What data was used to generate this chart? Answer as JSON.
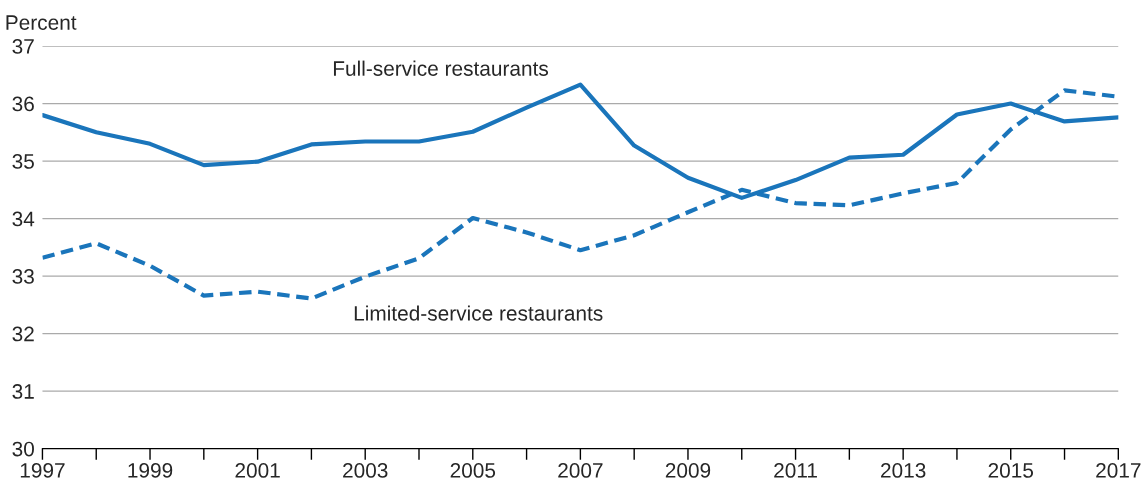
{
  "chart_data": {
    "type": "line",
    "ylabel": "Percent",
    "x": [
      1997,
      1998,
      1999,
      2000,
      2001,
      2002,
      2003,
      2004,
      2005,
      2006,
      2007,
      2008,
      2009,
      2010,
      2011,
      2012,
      2013,
      2014,
      2015,
      2016,
      2017
    ],
    "series": [
      {
        "name": "Full-service restaurants",
        "color": "#1a75bb",
        "line_style": "solid",
        "values": [
          35.8,
          35.5,
          35.3,
          34.93,
          34.99,
          35.29,
          35.34,
          35.34,
          35.51,
          35.93,
          36.33,
          35.27,
          34.71,
          34.36,
          34.67,
          35.06,
          35.11,
          35.81,
          36.0,
          35.69,
          35.76
        ]
      },
      {
        "name": "Limited-service restaurants",
        "color": "#1a75bb",
        "line_style": "dashed",
        "values": [
          33.32,
          33.57,
          33.18,
          32.66,
          32.73,
          32.61,
          32.99,
          33.31,
          34.01,
          33.76,
          33.45,
          33.71,
          34.11,
          34.5,
          34.27,
          34.23,
          34.44,
          34.62,
          35.55,
          36.23,
          36.12
        ]
      }
    ],
    "xlim": [
      1997,
      2017
    ],
    "xticks": [
      1997,
      {
        "value": 1998,
        "label": null
      },
      1999,
      {
        "value": 2000,
        "label": null
      },
      2001,
      {
        "value": 2002,
        "label": null
      },
      2003,
      {
        "value": 2004,
        "label": null
      },
      2005,
      {
        "value": 2006,
        "label": null
      },
      2007,
      {
        "value": 2008,
        "label": null
      },
      2009,
      {
        "value": 2010,
        "label": null
      },
      2011,
      {
        "value": 2012,
        "label": null
      },
      2013,
      {
        "value": 2014,
        "label": null
      },
      2015,
      {
        "value": 2016,
        "label": null
      },
      2017
    ],
    "ylim": [
      30,
      37
    ],
    "yticks": [
      30,
      31,
      32,
      33,
      34,
      35,
      36,
      37
    ],
    "grid": "y",
    "legend": false,
    "marker": "none"
  }
}
